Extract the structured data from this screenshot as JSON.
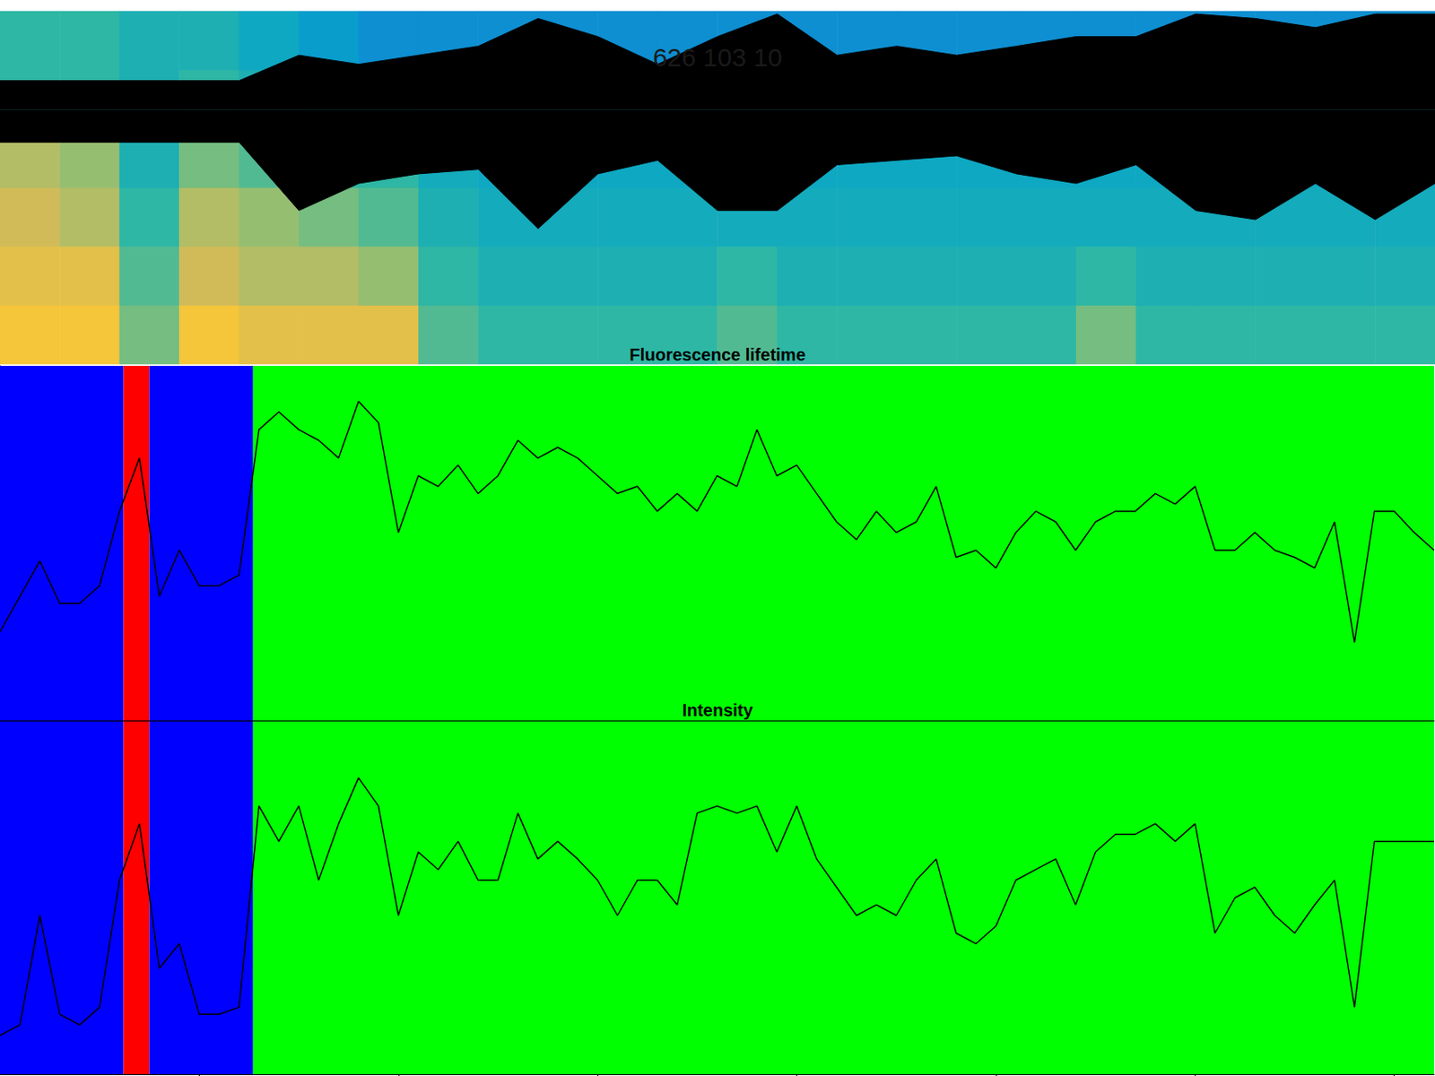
{
  "chart_data": [
    {
      "type": "heatmap",
      "title": "626 103 10",
      "tick_labels": false,
      "spectrogram": {
        "x": [
          0.15,
          0.45,
          0.75,
          1.05,
          1.35,
          1.65,
          1.95,
          2.25,
          2.55,
          2.85,
          3.15,
          3.45,
          3.75,
          4.05,
          4.35,
          4.65,
          4.95,
          5.25,
          5.55,
          5.85,
          6.15,
          6.45,
          6.75,
          7.05
        ],
        "y": [
          0.083,
          0.25,
          0.417,
          0.583,
          0.75,
          0.917
        ],
        "clim": [
          0,
          1
        ],
        "cells": [
          [
            0.85,
            0.85,
            0.6,
            0.85,
            0.8,
            0.8,
            0.8,
            0.55,
            0.5,
            0.5,
            0.5,
            0.5,
            0.55,
            0.5,
            0.5,
            0.5,
            0.5,
            0.5,
            0.6,
            0.5,
            0.5,
            0.5,
            0.5,
            0.5
          ],
          [
            0.8,
            0.8,
            0.55,
            0.75,
            0.7,
            0.7,
            0.65,
            0.5,
            0.45,
            0.45,
            0.45,
            0.45,
            0.5,
            0.45,
            0.45,
            0.45,
            0.45,
            0.45,
            0.5,
            0.45,
            0.45,
            0.45,
            0.45,
            0.45
          ],
          [
            0.75,
            0.7,
            0.5,
            0.7,
            0.65,
            0.6,
            0.55,
            0.45,
            0.42,
            0.42,
            0.42,
            0.42,
            0.42,
            0.42,
            0.42,
            0.42,
            0.42,
            0.42,
            0.42,
            0.42,
            0.42,
            0.42,
            0.42,
            0.42
          ],
          [
            0.7,
            0.65,
            0.45,
            0.6,
            0.55,
            0.5,
            0.5,
            0.42,
            0.4,
            0.4,
            0.4,
            0.4,
            0.4,
            0.4,
            0.4,
            0.4,
            0.4,
            0.4,
            0.4,
            0.4,
            0.4,
            0.4,
            0.4,
            0.4
          ],
          [
            0.5,
            0.5,
            0.45,
            0.5,
            0.45,
            0.4,
            0.4,
            0.35,
            0.35,
            0.35,
            0.35,
            0.35,
            0.35,
            0.35,
            0.35,
            0.35,
            0.35,
            0.35,
            0.35,
            0.35,
            0.35,
            0.35,
            0.35,
            0.35
          ],
          [
            0.5,
            0.5,
            0.45,
            0.45,
            0.4,
            0.35,
            0.3,
            0.3,
            0.3,
            0.3,
            0.3,
            0.3,
            0.3,
            0.3,
            0.3,
            0.3,
            0.3,
            0.3,
            0.3,
            0.3,
            0.3,
            0.3,
            0.3,
            0.3
          ]
        ]
      },
      "envelope": {
        "color": "#000000",
        "xlim": [
          0,
          7.2
        ],
        "ylim": [
          -4.5,
          1.75
        ],
        "x": [
          0,
          0.3,
          0.6,
          0.9,
          1.2,
          1.5,
          1.8,
          2.1,
          2.4,
          2.7,
          3.0,
          3.3,
          3.6,
          3.9,
          4.2,
          4.5,
          4.8,
          5.1,
          5.4,
          5.7,
          6.0,
          6.3,
          6.6,
          6.9,
          7.2
        ],
        "upper": [
          0.52,
          0.52,
          0.52,
          0.52,
          0.52,
          0.97,
          0.81,
          0.97,
          1.13,
          1.62,
          1.3,
          0.81,
          1.3,
          1.7,
          0.97,
          1.13,
          0.97,
          1.13,
          1.3,
          1.3,
          1.7,
          1.62,
          1.46,
          1.7,
          1.7
        ],
        "lower": [
          -0.57,
          -0.57,
          -0.57,
          -0.57,
          -0.57,
          -1.78,
          -1.3,
          -1.13,
          -1.05,
          -2.1,
          -1.13,
          -0.89,
          -1.78,
          -1.78,
          -0.97,
          -0.89,
          -0.81,
          -1.13,
          -1.3,
          -0.97,
          -1.78,
          -1.94,
          -1.3,
          -1.94,
          -1.3
        ]
      }
    },
    {
      "type": "line",
      "title": "Fluorescence lifetime",
      "tick_labels": false,
      "color": "#000000",
      "xlim": [
        0,
        7.2
      ],
      "xticks": [
        1,
        2,
        3,
        4,
        5,
        6,
        7
      ],
      "ylim": [
        0,
        1
      ],
      "yticks": [
        0,
        0.1,
        0.2,
        0.3,
        0.4,
        0.5,
        0.6,
        0.7,
        0.8,
        0.9,
        1
      ],
      "bands": [
        {
          "start": 0,
          "end": 0.62,
          "color": "#0000ff"
        },
        {
          "start": 0.62,
          "end": 0.75,
          "color": "#ff0000"
        },
        {
          "start": 0.75,
          "end": 1.27,
          "color": "#0000ff"
        },
        {
          "start": 1.27,
          "end": 7.2,
          "color": "#00ff00"
        }
      ],
      "x": [
        0,
        0.1,
        0.2,
        0.3,
        0.4,
        0.5,
        0.6,
        0.7,
        0.8,
        0.9,
        1.0,
        1.1,
        1.2,
        1.3,
        1.4,
        1.5,
        1.6,
        1.7,
        1.8,
        1.9,
        2.0,
        2.1,
        2.2,
        2.3,
        2.4,
        2.5,
        2.6,
        2.7,
        2.8,
        2.9,
        3.0,
        3.1,
        3.2,
        3.3,
        3.4,
        3.5,
        3.6,
        3.7,
        3.8,
        3.9,
        4.0,
        4.1,
        4.2,
        4.3,
        4.4,
        4.5,
        4.6,
        4.7,
        4.8,
        4.9,
        5.0,
        5.1,
        5.2,
        5.3,
        5.4,
        5.5,
        5.6,
        5.7,
        5.8,
        5.9,
        6.0,
        6.1,
        6.2,
        6.3,
        6.4,
        6.5,
        6.6,
        6.7,
        6.8,
        6.9,
        7.0,
        7.1,
        7.2
      ],
      "values": [
        0.25,
        0.35,
        0.45,
        0.33,
        0.33,
        0.38,
        0.59,
        0.74,
        0.35,
        0.48,
        0.38,
        0.38,
        0.41,
        0.82,
        0.87,
        0.82,
        0.79,
        0.74,
        0.9,
        0.84,
        0.53,
        0.69,
        0.66,
        0.72,
        0.64,
        0.69,
        0.79,
        0.74,
        0.77,
        0.74,
        0.69,
        0.64,
        0.66,
        0.59,
        0.64,
        0.59,
        0.69,
        0.66,
        0.82,
        0.69,
        0.72,
        0.64,
        0.56,
        0.51,
        0.59,
        0.53,
        0.56,
        0.66,
        0.46,
        0.48,
        0.43,
        0.53,
        0.59,
        0.56,
        0.48,
        0.56,
        0.59,
        0.59,
        0.64,
        0.61,
        0.66,
        0.48,
        0.48,
        0.53,
        0.48,
        0.46,
        0.43,
        0.56,
        0.22,
        0.59,
        0.59,
        0.53,
        0.48
      ]
    },
    {
      "type": "line",
      "title": "Intensity",
      "tick_labels": false,
      "color": "#000000",
      "xlim": [
        0,
        7.2
      ],
      "xticks": [
        1,
        2,
        3,
        4,
        5,
        6,
        7
      ],
      "ylim": [
        0,
        1
      ],
      "yticks": [
        0,
        0.1,
        0.2,
        0.3,
        0.4,
        0.5,
        0.6,
        0.7,
        0.8,
        0.9,
        1
      ],
      "bands": [
        {
          "start": 0,
          "end": 0.62,
          "color": "#0000ff"
        },
        {
          "start": 0.62,
          "end": 0.75,
          "color": "#ff0000"
        },
        {
          "start": 0.75,
          "end": 1.27,
          "color": "#0000ff"
        },
        {
          "start": 1.27,
          "end": 7.2,
          "color": "#00ff00"
        }
      ],
      "x": [
        0,
        0.1,
        0.2,
        0.3,
        0.4,
        0.5,
        0.6,
        0.7,
        0.8,
        0.9,
        1.0,
        1.1,
        1.2,
        1.3,
        1.4,
        1.5,
        1.6,
        1.7,
        1.8,
        1.9,
        2.0,
        2.1,
        2.2,
        2.3,
        2.4,
        2.5,
        2.6,
        2.7,
        2.8,
        2.9,
        3.0,
        3.1,
        3.2,
        3.3,
        3.4,
        3.5,
        3.6,
        3.7,
        3.8,
        3.9,
        4.0,
        4.1,
        4.2,
        4.3,
        4.4,
        4.5,
        4.6,
        4.7,
        4.8,
        4.9,
        5.0,
        5.1,
        5.2,
        5.3,
        5.4,
        5.5,
        5.6,
        5.7,
        5.8,
        5.9,
        6.0,
        6.1,
        6.2,
        6.3,
        6.4,
        6.5,
        6.6,
        6.7,
        6.8,
        6.9,
        7.0,
        7.1,
        7.2
      ],
      "values": [
        0.11,
        0.14,
        0.45,
        0.17,
        0.14,
        0.19,
        0.55,
        0.71,
        0.3,
        0.37,
        0.17,
        0.17,
        0.19,
        0.76,
        0.66,
        0.76,
        0.55,
        0.71,
        0.84,
        0.76,
        0.45,
        0.63,
        0.58,
        0.66,
        0.55,
        0.55,
        0.74,
        0.61,
        0.66,
        0.61,
        0.55,
        0.45,
        0.55,
        0.55,
        0.48,
        0.74,
        0.76,
        0.74,
        0.76,
        0.63,
        0.76,
        0.61,
        0.53,
        0.45,
        0.48,
        0.45,
        0.55,
        0.61,
        0.4,
        0.37,
        0.42,
        0.55,
        0.58,
        0.61,
        0.48,
        0.63,
        0.68,
        0.68,
        0.71,
        0.66,
        0.71,
        0.4,
        0.5,
        0.53,
        0.45,
        0.4,
        0.48,
        0.55,
        0.19,
        0.66,
        0.66,
        0.66,
        0.66
      ]
    }
  ]
}
